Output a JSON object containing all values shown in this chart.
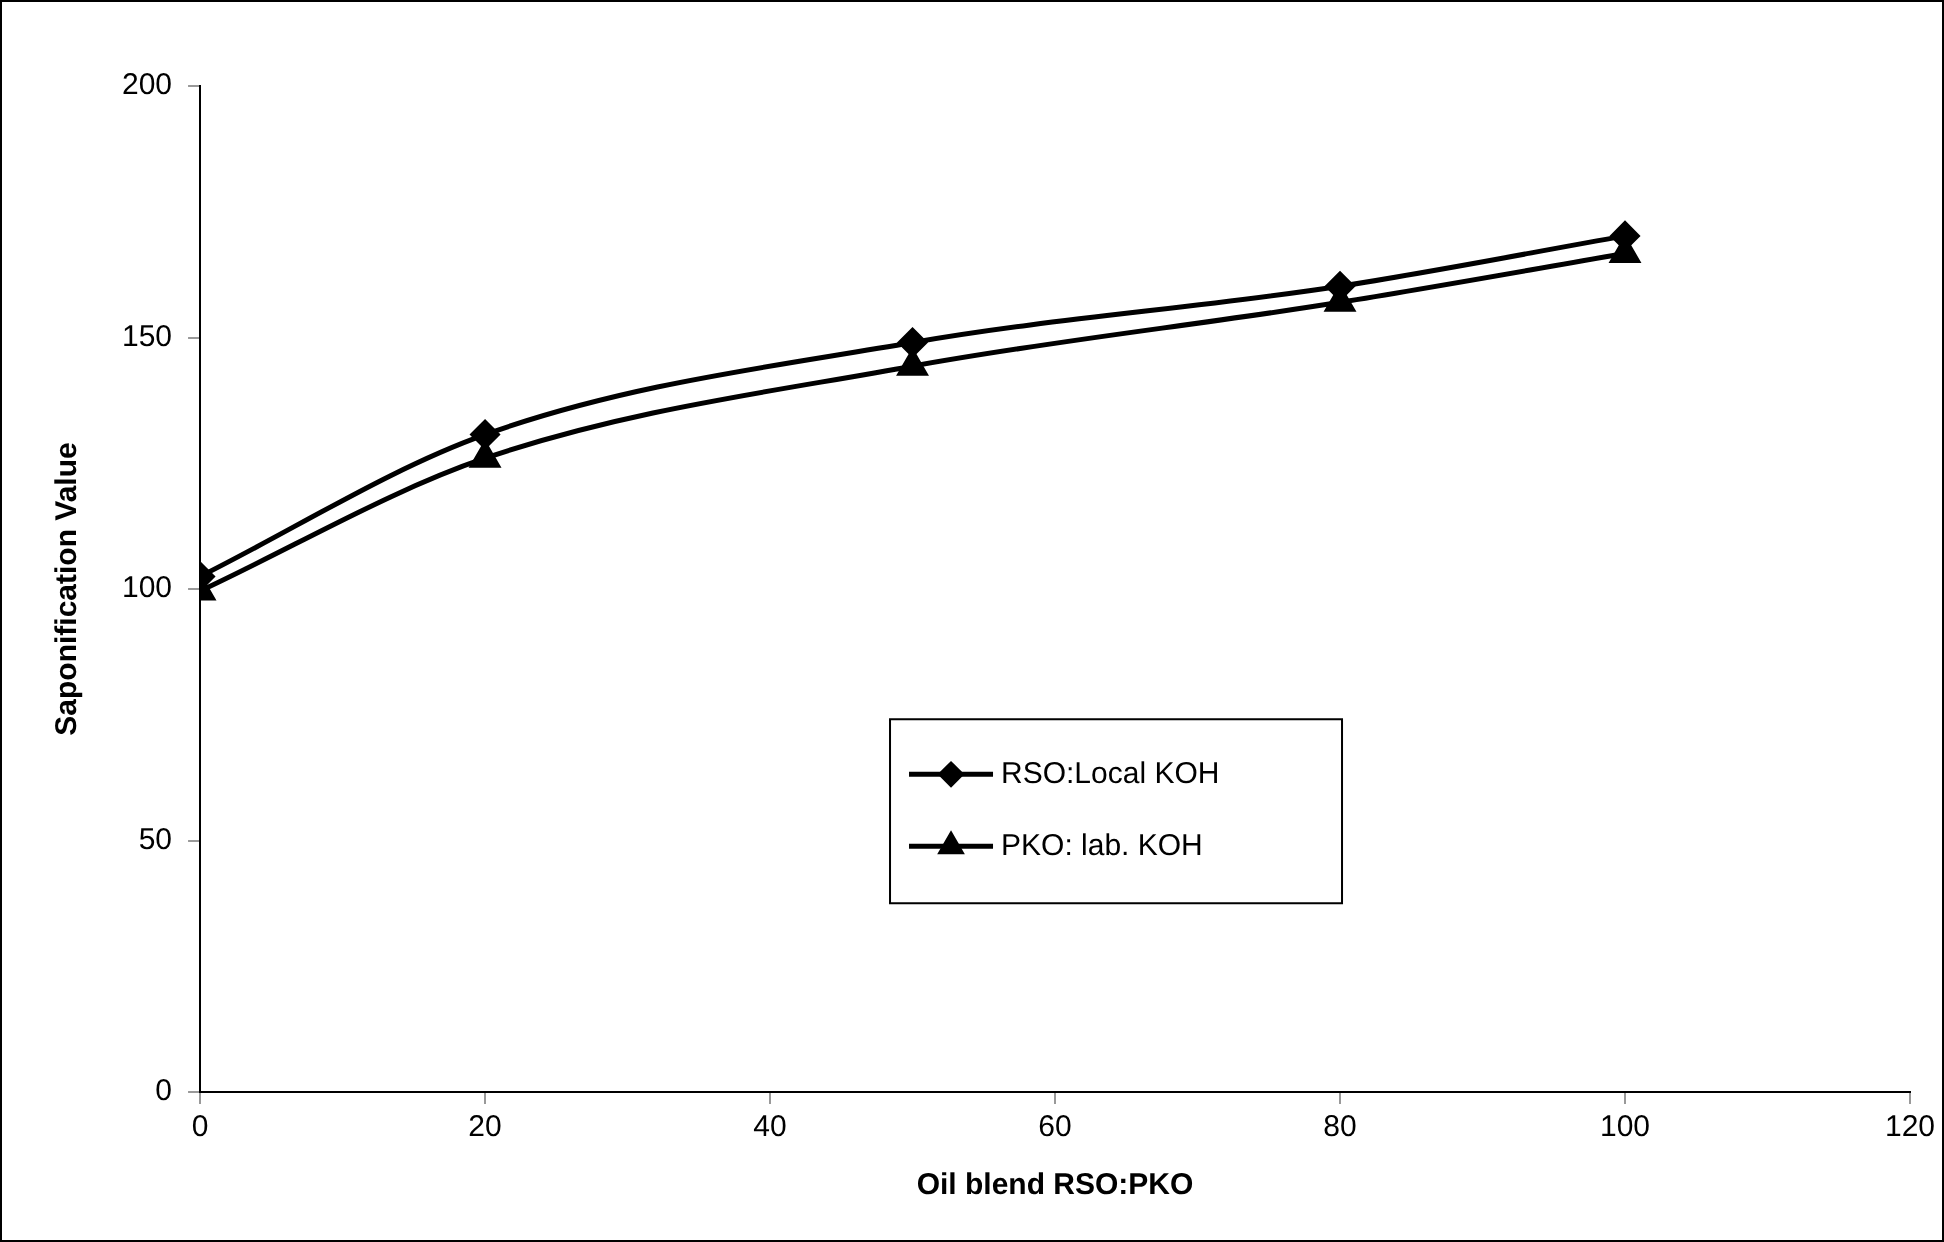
{
  "chart_data": {
    "type": "line",
    "xlabel": "Oil blend RSO:PKO",
    "ylabel": "Saponification Value",
    "xlim": [
      0,
      120
    ],
    "xticks": [
      0,
      20,
      40,
      60,
      80,
      100,
      120
    ],
    "ylim": [
      0,
      200
    ],
    "yticks": [
      0,
      50,
      100,
      150,
      200
    ],
    "grid": false,
    "legend": "center",
    "line_style": "solid",
    "series": [
      {
        "name": "RSO:Local KOH",
        "color": "#000000",
        "marker": "diamond",
        "x": [
          0,
          20,
          50,
          80,
          100
        ],
        "values": [
          102.5,
          130.7,
          149,
          160.2,
          170.2
        ]
      },
      {
        "name": "PKO: lab. KOH",
        "color": "#000000",
        "marker": "triangle",
        "x": [
          0,
          20,
          50,
          80,
          100
        ],
        "values": [
          99.6,
          126,
          144.3,
          157,
          166.7
        ]
      }
    ]
  }
}
